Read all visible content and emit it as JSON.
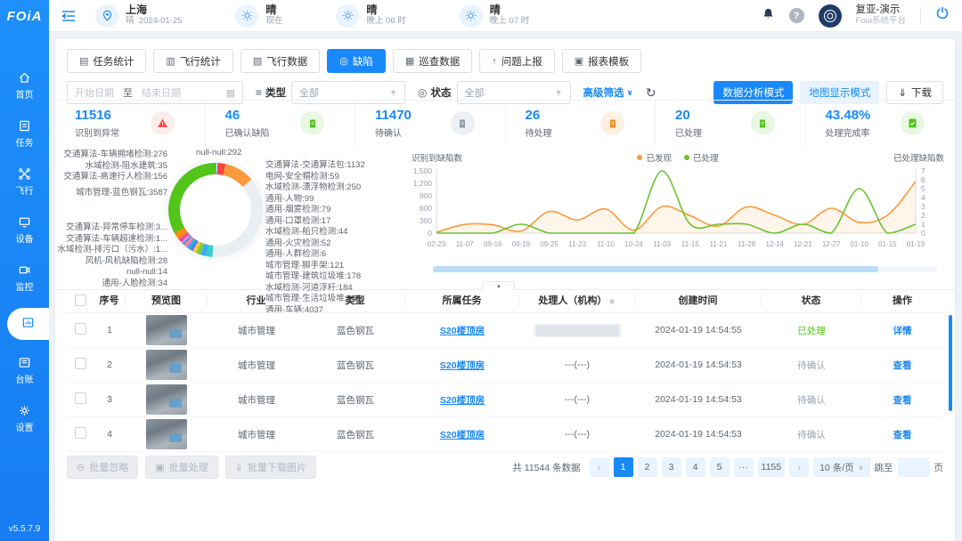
{
  "header": {
    "logo": "FOiA",
    "location": {
      "city": "上海",
      "weather": "晴",
      "date": "2024-01-25"
    },
    "forecasts": [
      {
        "cond": "晴",
        "time": "现在"
      },
      {
        "cond": "晴",
        "time": "晚上 06 时"
      },
      {
        "cond": "晴",
        "time": "晚上 07 时"
      }
    ],
    "user": {
      "name": "复亚-演示",
      "org": "Foia系统平台"
    }
  },
  "sidebar": {
    "items": [
      {
        "label": "首页",
        "icon": "home-icon",
        "active": false
      },
      {
        "label": "任务",
        "icon": "task-icon",
        "active": false
      },
      {
        "label": "飞行",
        "icon": "flight-icon",
        "active": false
      },
      {
        "label": "设备",
        "icon": "device-icon",
        "active": false
      },
      {
        "label": "监控",
        "icon": "monitor-icon",
        "active": false
      },
      {
        "label": "",
        "icon": "data-report-icon",
        "active": true
      },
      {
        "label": "台账",
        "icon": "ledger-icon",
        "active": false
      },
      {
        "label": "设置",
        "icon": "settings-icon",
        "active": false
      }
    ],
    "version": "v5.5.7.9"
  },
  "tabs": [
    {
      "label": "任务统计",
      "icon": "task-stats-icon",
      "active": false
    },
    {
      "label": "飞行统计",
      "icon": "flight-stats-icon",
      "active": false
    },
    {
      "label": "飞行数据",
      "icon": "flight-data-icon",
      "active": false
    },
    {
      "label": "缺陷",
      "icon": "defect-icon",
      "active": true
    },
    {
      "label": "巡查数据",
      "icon": "patrol-data-icon",
      "active": false
    },
    {
      "label": "问题上报",
      "icon": "report-issue-icon",
      "active": false
    },
    {
      "label": "报表模板",
      "icon": "report-template-icon",
      "active": false
    }
  ],
  "filters": {
    "start_placeholder": "开始日期",
    "range_separator": "至",
    "end_placeholder": "结束日期",
    "type_label": "类型",
    "type_value": "全部",
    "status_label": "状态",
    "status_value": "全部",
    "advanced_label": "高级筛选"
  },
  "modes": {
    "data_mode": "数据分析模式",
    "map_mode": "地图显示模式",
    "download": "下载"
  },
  "stats": [
    {
      "value": "11516",
      "label": "识别到异常",
      "icon": "alert-triangle-icon",
      "tone": "red"
    },
    {
      "value": "46",
      "label": "已确认缺陷",
      "icon": "confirmed-defect-icon",
      "tone": "green"
    },
    {
      "value": "11470",
      "label": "待确认",
      "icon": "pending-confirm-icon",
      "tone": "gray"
    },
    {
      "value": "26",
      "label": "待处理",
      "icon": "todo-icon",
      "tone": "orange"
    },
    {
      "value": "20",
      "label": "已处理",
      "icon": "done-icon",
      "tone": "green"
    },
    {
      "value": "43.48%",
      "label": "处理完成率",
      "icon": "completion-rate-icon",
      "tone": "green"
    }
  ],
  "chart_data": [
    {
      "type": "pie",
      "donut": true,
      "slices": [
        {
          "name": "水域检测-阻水建筑",
          "value": 35,
          "color": "#2fc6e0"
        },
        {
          "name": "通用-人脸检测",
          "value": 34,
          "color": "#f2f5f8"
        },
        {
          "name": "null-null",
          "value": 292,
          "color": "#f5453d"
        },
        {
          "name": "交通算法-交通算法包",
          "value": 1132,
          "color": "#fa9a3c"
        },
        {
          "name": "通用-车辆",
          "value": 4037,
          "color": "#e9eef3"
        },
        {
          "name": "水域检测-漂浮物检测",
          "value": 250,
          "color": "#36cfc9"
        },
        {
          "name": "水域检测-河道浮杆",
          "value": 184,
          "color": "#40a9ff"
        },
        {
          "name": "城市管理-建筑垃圾堆",
          "value": 178,
          "color": "#73d13d"
        },
        {
          "name": "城市管理-生活垃圾堆",
          "value": 146,
          "color": "#ffc53d"
        },
        {
          "name": "城市管理-脚手架",
          "value": 121,
          "color": "#597ef7"
        },
        {
          "name": "通用-人物",
          "value": 99,
          "color": "#13c2c2"
        },
        {
          "name": "通用-烟雾检测",
          "value": 79,
          "color": "#b37feb"
        },
        {
          "name": "电网-安全帽检测",
          "value": 59,
          "color": "#ff85c0"
        },
        {
          "name": "通用-火灾检测",
          "value": 52,
          "color": "#ff7a45"
        },
        {
          "name": "水域检测-船只检测",
          "value": 44,
          "color": "#36a3f7"
        },
        {
          "name": "通用-口罩检测",
          "value": 17,
          "color": "#9254de"
        },
        {
          "name": "通用-人群检测",
          "value": 6,
          "color": "#5cdbd3"
        },
        {
          "name": "风机-风机缺陷检测",
          "value": 28,
          "color": "#adc6ff"
        },
        {
          "name": "null-null",
          "value": 14,
          "color": "#d3adf7"
        },
        {
          "name": "交通算法-异常停车检测",
          "value": 3,
          "color": "#ffadd2"
        },
        {
          "name": "交通算法-车辆超速检测",
          "value": 1,
          "color": "#ffd666"
        },
        {
          "name": "水域检测-排污口（污水）",
          "value": 1,
          "color": "#87e8de"
        },
        {
          "name": "交通算法-高速行人检测",
          "value": 156,
          "color": "#eb4fa4"
        },
        {
          "name": "交通算法-车辆拥堵检测",
          "value": 276,
          "color": "#fa8c16"
        },
        {
          "name": "城市管理-蓝色钢瓦",
          "value": 3587,
          "color": "#52c41a"
        }
      ],
      "labels_left_top": [
        "交通算法-车辆拥堵检测:276",
        "水域检测-阻水建筑:35",
        "交通算法-高速行人检测:156"
      ],
      "labels_left_mid": [
        "城市管理-蓝色钢瓦:3587"
      ],
      "labels_left_bottom": [
        "交通算法-异常停车检测:3...",
        "交通算法-车辆超速检测:1...",
        "水域检测-排污口（污水）:1...",
        "风机-风机缺陷检测:28",
        "null-null:14",
        "通用-人脸检测:34"
      ],
      "label_right_top": "null-null:292",
      "labels_right": [
        "交通算法-交通算法包:1132",
        "电网-安全帽检测:59",
        "水域检测-漂浮物检测:250",
        "通用-人物:99",
        "通用-烟雾检测:79",
        "通用-口罩检测:17",
        "水域检测-船只检测:44",
        "通用-火灾检测:52",
        "通用-人群检测:6",
        "城市管理-脚手架:121",
        "城市管理-建筑垃圾堆:178",
        "水域检测-河道浮杆:184",
        "城市管理-生活垃圾堆:146",
        "通用-车辆:4037"
      ]
    },
    {
      "type": "line",
      "x": [
        "02-23",
        "11-07",
        "09-16",
        "09-19",
        "09-25",
        "11-23",
        "11-10",
        "10-24",
        "11-03",
        "11-15",
        "11-21",
        "11-28",
        "12-14",
        "12-21",
        "12-27",
        "01-10",
        "01-15",
        "01-19"
      ],
      "ylabel_left": "识别到缺陷数",
      "ylabel_right": "已处理缺陷数",
      "ylim_left": [
        0,
        1500
      ],
      "ylim_right": [
        0,
        7
      ],
      "left_ticks": [
        "1,500",
        "1,200",
        "900",
        "600",
        "300",
        "0"
      ],
      "right_ticks": [
        "7",
        "6",
        "5",
        "4",
        "3",
        "2",
        "1",
        "0"
      ],
      "legend_position": "top",
      "series": [
        {
          "name": "已发现",
          "color": "#fb9a3c",
          "axis": "left",
          "values": [
            20,
            210,
            200,
            50,
            520,
            320,
            580,
            70,
            640,
            420,
            170,
            630,
            430,
            210,
            600,
            260,
            430,
            1240
          ]
        },
        {
          "name": "已处理",
          "color": "#6ac42f",
          "axis": "right",
          "values": [
            0,
            0,
            0,
            1,
            0,
            0,
            0,
            0,
            7,
            1,
            1,
            1,
            0,
            1,
            0,
            5,
            0,
            1
          ]
        }
      ]
    }
  ],
  "table": {
    "columns": [
      "序号",
      "预览图",
      "行业",
      "类型",
      "所属任务",
      "处理人（机构）",
      "创建时间",
      "状态",
      "操作"
    ],
    "status_colors": {
      "已处理": "#52c41a",
      "待确认": "#9aa3af"
    },
    "rows": [
      {
        "no": "1",
        "industry": "城市管理",
        "type": "蓝色钢瓦",
        "task": "S20楼顶房",
        "handler": "",
        "handler_redacted": true,
        "created": "2024-01-19 14:54:55",
        "status": "已处理",
        "action": "详情"
      },
      {
        "no": "2",
        "industry": "城市管理",
        "type": "蓝色钢瓦",
        "task": "S20楼顶房",
        "handler": "---(---)",
        "handler_redacted": false,
        "created": "2024-01-19 14:54:53",
        "status": "待确认",
        "action": "查看"
      },
      {
        "no": "3",
        "industry": "城市管理",
        "type": "蓝色钢瓦",
        "task": "S20楼顶房",
        "handler": "---(---)",
        "handler_redacted": false,
        "created": "2024-01-19 14:54:53",
        "status": "待确认",
        "action": "查看"
      },
      {
        "no": "4",
        "industry": "城市管理",
        "type": "蓝色钢瓦",
        "task": "S20楼顶房",
        "handler": "---(---)",
        "handler_redacted": false,
        "created": "2024-01-19 14:54:53",
        "status": "待确认",
        "action": "查看"
      }
    ]
  },
  "footer": {
    "batch_buttons": [
      {
        "label": "批量忽略",
        "icon": "ignore-icon"
      },
      {
        "label": "批量处理",
        "icon": "process-icon"
      },
      {
        "label": "批量下载图片",
        "icon": "download-images-icon"
      }
    ],
    "pagination": {
      "total_text": "共 11544 条数据",
      "pages": [
        "1",
        "2",
        "3",
        "4",
        "5",
        "···",
        "1155"
      ],
      "active_page": "1",
      "page_size": "10 条/页",
      "jump_prefix": "跳至",
      "jump_suffix": "页"
    }
  }
}
